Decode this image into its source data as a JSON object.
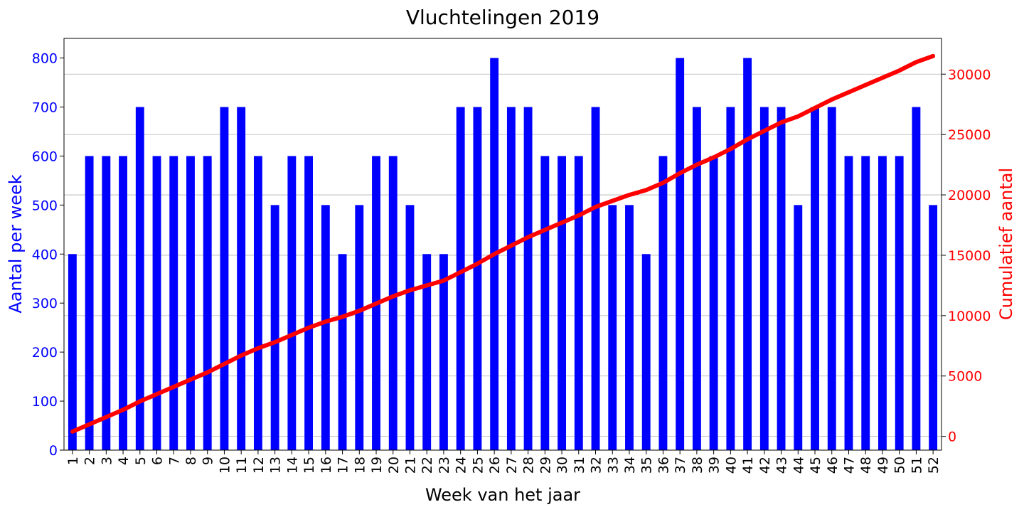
{
  "chart_data": {
    "type": "bar+line",
    "title": "Vluchtelingen 2019",
    "xlabel": "Week van het jaar",
    "ylabel_left": "Aantal per week",
    "ylabel_right": "Cumulatief aantal",
    "categories": [
      "1",
      "2",
      "3",
      "4",
      "5",
      "6",
      "7",
      "8",
      "9",
      "10",
      "11",
      "12",
      "13",
      "14",
      "15",
      "16",
      "17",
      "18",
      "19",
      "20",
      "21",
      "22",
      "23",
      "24",
      "25",
      "26",
      "27",
      "28",
      "29",
      "30",
      "31",
      "32",
      "33",
      "34",
      "35",
      "36",
      "37",
      "38",
      "39",
      "40",
      "41",
      "42",
      "43",
      "44",
      "45",
      "46",
      "47",
      "48",
      "49",
      "50",
      "51",
      "52"
    ],
    "series": [
      {
        "type": "bar",
        "axis": "left",
        "color": "#0000ff",
        "values": [
          400,
          600,
          600,
          600,
          700,
          600,
          600,
          600,
          600,
          700,
          700,
          600,
          500,
          600,
          600,
          500,
          400,
          500,
          600,
          600,
          500,
          400,
          400,
          700,
          700,
          800,
          700,
          700,
          600,
          600,
          600,
          700,
          500,
          500,
          400,
          600,
          800,
          700,
          600,
          700,
          800,
          700,
          700,
          500,
          700,
          700,
          600,
          600,
          600,
          600,
          700,
          500
        ]
      },
      {
        "type": "line",
        "axis": "right",
        "color": "#ff0000",
        "values": [
          400,
          1000,
          1600,
          2200,
          2900,
          3500,
          4100,
          4700,
          5300,
          6000,
          6700,
          7300,
          7800,
          8400,
          9000,
          9500,
          9900,
          10400,
          11000,
          11600,
          12100,
          12500,
          12900,
          13600,
          14300,
          15100,
          15800,
          16500,
          17100,
          17700,
          18300,
          19000,
          19500,
          20000,
          20400,
          21000,
          21800,
          22500,
          23100,
          23800,
          24600,
          25300,
          26000,
          26500,
          27200,
          27900,
          28500,
          29100,
          29700,
          30300,
          31000,
          31500
        ]
      }
    ],
    "ylim_left": [
      0,
      840
    ],
    "ylim_right": [
      -1140,
      32960
    ],
    "yticks_left": [
      0,
      100,
      200,
      300,
      400,
      500,
      600,
      700,
      800
    ],
    "yticks_right": [
      0,
      5000,
      10000,
      15000,
      20000,
      25000,
      30000
    ],
    "grid": "right-axis horizontal",
    "left_axis_color": "#0000ff",
    "right_axis_color": "#ff0000"
  }
}
